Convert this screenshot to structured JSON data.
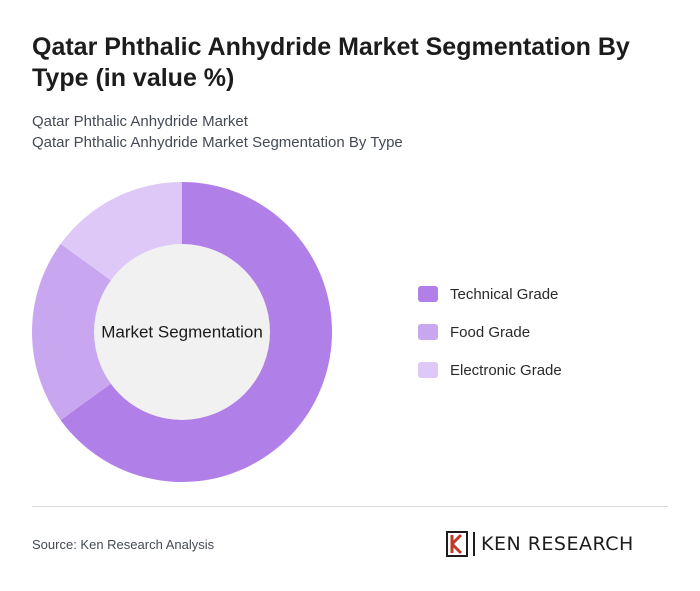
{
  "title": "Qatar Phthalic Anhydride Market Segmentation By Type (in value %)",
  "subtitle_line1": "Qatar Phthalic Anhydride Market",
  "subtitle_line2": "Qatar Phthalic Anhydride Market Segmentation By Type",
  "chart_data": {
    "type": "pie",
    "donut": true,
    "center_label": "Market Segmentation",
    "categories": [
      "Technical Grade",
      "Food Grade",
      "Electronic Grade"
    ],
    "values": [
      65,
      20,
      15
    ],
    "colors": [
      "#b07fe8",
      "#c9a6f0",
      "#ddc8f7"
    ],
    "legend_position": "right"
  },
  "center_fill": "#f1f1f1",
  "footer": {
    "source": "Source: Ken Research Analysis",
    "logo_text": "KEN RESEARCH"
  }
}
